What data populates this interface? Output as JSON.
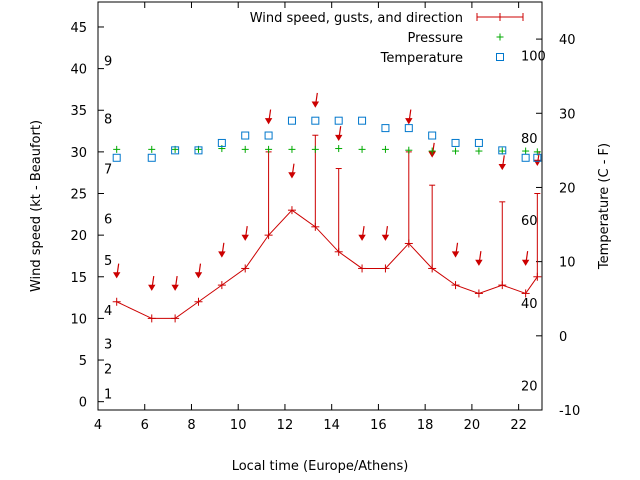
{
  "chart_data": {
    "type": "line",
    "xlabel": "Local time (Europe/Athens)",
    "ylabel": "Wind speed (kt - Beaufort)",
    "y2label": "Temperature (C - F)",
    "xlim": [
      4,
      23
    ],
    "ylim": [
      -1,
      48
    ],
    "y2lim": [
      -10,
      45
    ],
    "xticks": [
      4,
      6,
      8,
      10,
      12,
      14,
      16,
      18,
      20,
      22
    ],
    "yticks": [
      0,
      5,
      10,
      15,
      20,
      25,
      30,
      35,
      40,
      45
    ],
    "y2ticks": [
      -10,
      0,
      10,
      20,
      30,
      40
    ],
    "beaufort_labels": [
      {
        "label": "1",
        "y": 1
      },
      {
        "label": "2",
        "y": 4
      },
      {
        "label": "3",
        "y": 7
      },
      {
        "label": "4",
        "y": 11
      },
      {
        "label": "5",
        "y": 17
      },
      {
        "label": "6",
        "y": 22
      },
      {
        "label": "7",
        "y": 28
      },
      {
        "label": "8",
        "y": 34
      },
      {
        "label": "9",
        "y": 41
      }
    ],
    "fahrenheit_labels": [
      {
        "label": "20",
        "y2": -6.7
      },
      {
        "label": "40",
        "y2": 4.4
      },
      {
        "label": "60",
        "y2": 15.6
      },
      {
        "label": "80",
        "y2": 26.7
      },
      {
        "label": "100",
        "y2": 37.8
      }
    ],
    "legend": [
      {
        "name": "Wind speed, gusts, and direction",
        "color": "#cc0000",
        "marker": "line-errorbar"
      },
      {
        "name": "Pressure",
        "color": "#00aa00",
        "marker": "plus"
      },
      {
        "name": "Temperature",
        "color": "#0077cc",
        "marker": "square"
      }
    ],
    "legend_position": "top-right",
    "wind": {
      "x": [
        4.8,
        6.3,
        7.3,
        8.3,
        9.3,
        10.3,
        11.3,
        12.3,
        13.3,
        14.3,
        15.3,
        16.3,
        17.3,
        18.3,
        19.3,
        20.3,
        21.3,
        22.3,
        22.8
      ],
      "speed": [
        12,
        10,
        10,
        12,
        14,
        16,
        20,
        23,
        21,
        18,
        16,
        16,
        19,
        16,
        14,
        13,
        14,
        13,
        15
      ],
      "gust": [
        null,
        null,
        null,
        null,
        null,
        null,
        30,
        null,
        32,
        28,
        null,
        null,
        30,
        26,
        null,
        null,
        24,
        null,
        25
      ]
    },
    "direction_arrows": [
      {
        "x": 4.8,
        "y": 15.5
      },
      {
        "x": 6.3,
        "y": 14
      },
      {
        "x": 7.3,
        "y": 14
      },
      {
        "x": 8.3,
        "y": 15.5
      },
      {
        "x": 9.3,
        "y": 18
      },
      {
        "x": 10.3,
        "y": 20
      },
      {
        "x": 11.3,
        "y": 34
      },
      {
        "x": 12.3,
        "y": 27.5
      },
      {
        "x": 13.3,
        "y": 36
      },
      {
        "x": 14.3,
        "y": 32
      },
      {
        "x": 15.3,
        "y": 20
      },
      {
        "x": 16.3,
        "y": 20
      },
      {
        "x": 17.3,
        "y": 34
      },
      {
        "x": 18.3,
        "y": 30
      },
      {
        "x": 19.3,
        "y": 18
      },
      {
        "x": 20.3,
        "y": 17
      },
      {
        "x": 21.3,
        "y": 28.5
      },
      {
        "x": 22.3,
        "y": 17
      },
      {
        "x": 22.8,
        "y": 29
      }
    ],
    "pressure": {
      "x": [
        4.8,
        6.3,
        7.3,
        8.3,
        9.3,
        10.3,
        11.3,
        12.3,
        13.3,
        14.3,
        15.3,
        16.3,
        17.3,
        18.3,
        19.3,
        20.3,
        21.3,
        22.3,
        22.8
      ],
      "y": [
        30.3,
        30.3,
        30.3,
        30.3,
        30.4,
        30.3,
        30.3,
        30.3,
        30.3,
        30.4,
        30.3,
        30.3,
        30.2,
        30.1,
        30.1,
        30.1,
        30.1,
        30.1,
        30
      ]
    },
    "temperature": {
      "x": [
        4.8,
        6.3,
        7.3,
        8.3,
        9.3,
        10.3,
        11.3,
        12.3,
        13.3,
        14.3,
        15.3,
        16.3,
        17.3,
        18.3,
        19.3,
        20.3,
        21.3,
        22.3,
        22.8
      ],
      "y2": [
        24,
        24,
        25,
        25,
        26,
        27,
        27,
        29,
        29,
        29,
        29,
        28,
        28,
        27,
        26,
        26,
        25,
        24,
        24
      ]
    }
  }
}
